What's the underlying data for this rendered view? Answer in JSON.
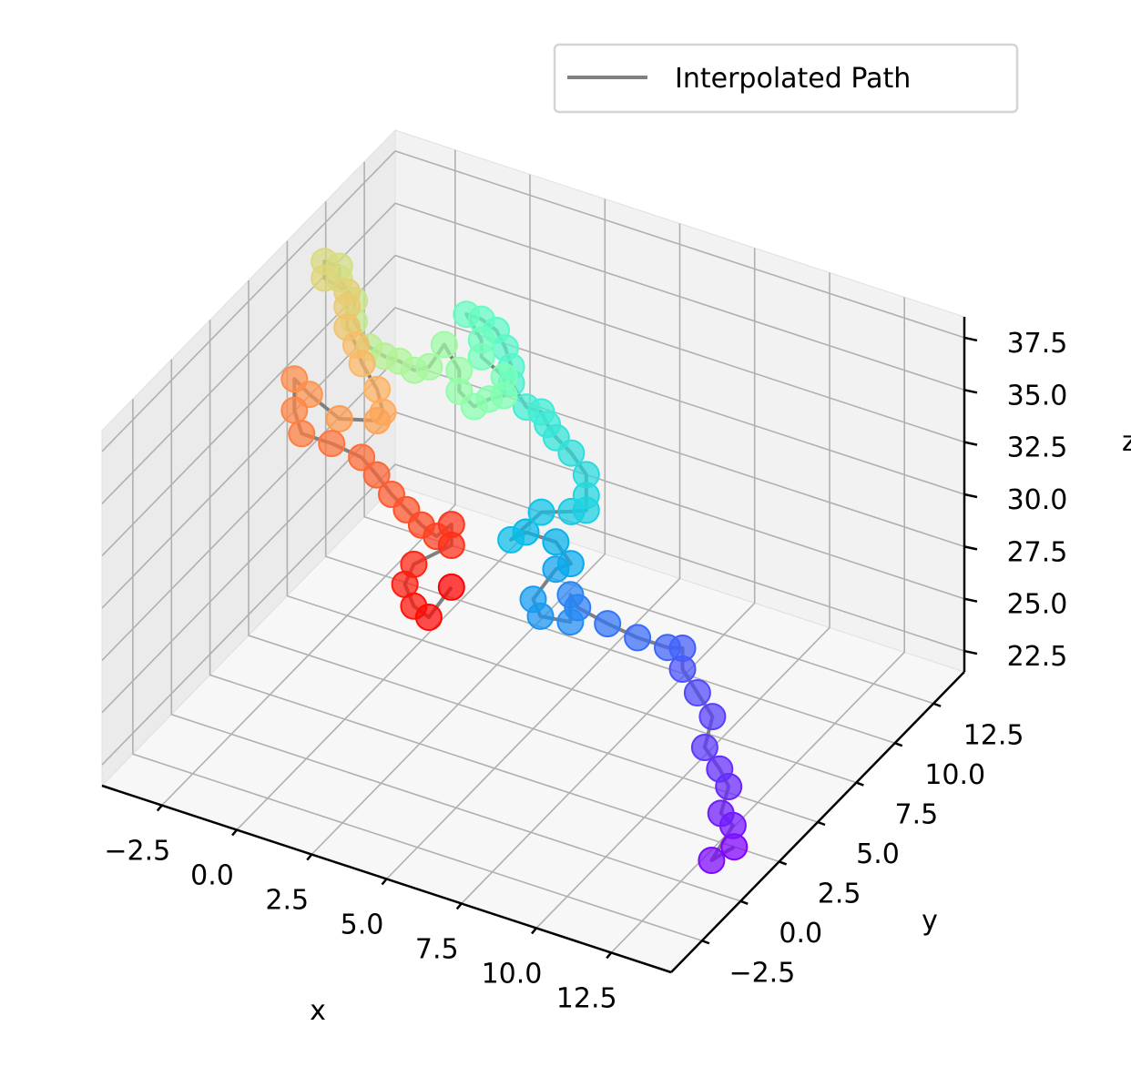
{
  "chart_data": {
    "type": "scatter3d",
    "title": "",
    "xlabel": "x",
    "ylabel": "y",
    "zlabel": "z",
    "xticks": [
      "−2.5",
      "0.0",
      "2.5",
      "5.0",
      "7.5",
      "10.0",
      "12.5"
    ],
    "yticks": [
      "−2.5",
      "0.0",
      "2.5",
      "5.0",
      "7.5",
      "10.0",
      "12.5"
    ],
    "zticks": [
      "22.5",
      "25.0",
      "27.5",
      "30.0",
      "32.5",
      "35.0",
      "37.5"
    ],
    "legend": {
      "label": "Interpolated Path",
      "position": "top-right",
      "line_color": "#808080"
    },
    "grid": true,
    "colormap": "rainbow (first point violet, last point red)",
    "series": [
      {
        "name": "Interpolated Path",
        "style": "gray line with rainbow-colored markers",
        "points": [
          [
            13.0,
            2.5,
            21.5
          ],
          [
            12.5,
            2.0,
            21.0
          ],
          [
            12.7,
            3.0,
            22.0
          ],
          [
            12.3,
            3.0,
            22.4
          ],
          [
            12.3,
            3.5,
            23.3
          ],
          [
            12.0,
            3.5,
            24.0
          ],
          [
            11.5,
            3.5,
            24.8
          ],
          [
            11.5,
            4.0,
            25.9
          ],
          [
            11.0,
            4.0,
            26.8
          ],
          [
            10.5,
            4.0,
            27.7
          ],
          [
            10.5,
            4.0,
            28.7
          ],
          [
            10.0,
            4.0,
            28.5
          ],
          [
            9.0,
            4.0,
            28.5
          ],
          [
            8.0,
            4.0,
            28.7
          ],
          [
            7.0,
            4.0,
            29.0
          ],
          [
            6.5,
            4.5,
            29.0
          ],
          [
            6.5,
            4.5,
            27.7
          ],
          [
            5.5,
            4.5,
            27.5
          ],
          [
            5.0,
            5.0,
            27.7
          ],
          [
            5.5,
            5.5,
            29.0
          ],
          [
            6.0,
            5.5,
            29.5
          ],
          [
            5.5,
            5.5,
            30.3
          ],
          [
            4.5,
            5.5,
            30.3
          ],
          [
            4.0,
            5.5,
            29.7
          ],
          [
            4.5,
            6.5,
            30.5
          ],
          [
            5.5,
            6.5,
            31.0
          ],
          [
            6.0,
            6.5,
            31.3
          ],
          [
            6.0,
            6.5,
            32.0
          ],
          [
            6.0,
            6.5,
            33.0
          ],
          [
            5.5,
            6.5,
            33.8
          ],
          [
            5.0,
            6.5,
            34.3
          ],
          [
            4.7,
            6.5,
            34.8
          ],
          [
            4.5,
            6.5,
            35.3
          ],
          [
            4.0,
            6.5,
            35.3
          ],
          [
            3.5,
            6.5,
            36.2
          ],
          [
            3.5,
            6.5,
            37.0
          ],
          [
            3.3,
            6.5,
            37.8
          ],
          [
            3.0,
            6.5,
            38.5
          ],
          [
            2.5,
            6.5,
            38.8
          ],
          [
            2.0,
            6.5,
            38.8
          ],
          [
            2.5,
            6.5,
            37.8
          ],
          [
            2.5,
            6.5,
            37.0
          ],
          [
            3.0,
            7.0,
            35.9
          ],
          [
            3.0,
            7.0,
            35.0
          ],
          [
            2.5,
            7.0,
            34.6
          ],
          [
            2.0,
            7.0,
            34.0
          ],
          [
            1.5,
            7.0,
            34.5
          ],
          [
            1.5,
            7.0,
            35.5
          ],
          [
            1.0,
            7.0,
            36.5
          ],
          [
            0.5,
            7.0,
            35.2
          ],
          [
            0.0,
            7.0,
            34.8
          ],
          [
            -0.5,
            7.0,
            35.0
          ],
          [
            -1.0,
            7.0,
            35.0
          ],
          [
            -1.5,
            7.0,
            35.2
          ],
          [
            -2.0,
            7.0,
            36.2
          ],
          [
            -2.0,
            7.0,
            37.2
          ],
          [
            -2.5,
            7.0,
            38.0
          ],
          [
            -2.5,
            7.0,
            38.6
          ],
          [
            -3.0,
            7.0,
            38.6
          ],
          [
            -3.0,
            7.0,
            37.8
          ],
          [
            -2.5,
            7.5,
            37.0
          ],
          [
            -2.5,
            7.5,
            36.3
          ],
          [
            -2.5,
            7.5,
            35.3
          ],
          [
            -2.2,
            7.5,
            34.6
          ],
          [
            -2.0,
            7.5,
            33.8
          ],
          [
            -1.5,
            7.5,
            32.8
          ],
          [
            -1.3,
            7.5,
            31.8
          ],
          [
            -1.5,
            7.5,
            31.3
          ],
          [
            -2.5,
            7.0,
            31.3
          ],
          [
            -3.5,
            7.0,
            32.0
          ],
          [
            -4.0,
            7.0,
            32.5
          ],
          [
            -4.0,
            7.0,
            31.0
          ],
          [
            -3.5,
            6.5,
            30.5
          ],
          [
            -2.5,
            6.5,
            30.5
          ],
          [
            -1.5,
            6.5,
            30.3
          ],
          [
            -1.0,
            6.5,
            29.7
          ],
          [
            -0.5,
            6.5,
            29.0
          ],
          [
            0.0,
            6.5,
            28.5
          ],
          [
            0.5,
            6.5,
            28.0
          ],
          [
            1.0,
            6.5,
            27.7
          ],
          [
            1.5,
            6.5,
            28.5
          ],
          [
            1.5,
            6.5,
            27.5
          ],
          [
            0.5,
            6.0,
            26.5
          ],
          [
            0.2,
            6.0,
            25.4
          ],
          [
            0.5,
            6.0,
            24.5
          ],
          [
            1.0,
            6.0,
            24.2
          ],
          [
            1.5,
            6.5,
            25.5
          ]
        ]
      }
    ]
  }
}
